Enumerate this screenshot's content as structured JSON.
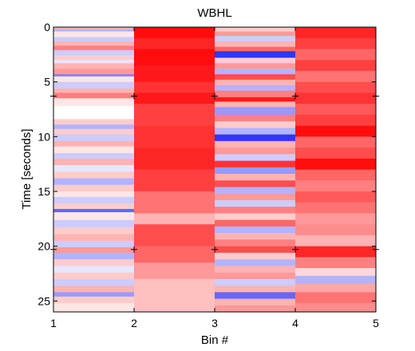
{
  "chart_data": {
    "type": "heatmap",
    "title": "WBHL",
    "xlabel": "Bin #",
    "ylabel": "Time [seconds]",
    "xlim": [
      1,
      5
    ],
    "ylim": [
      0,
      26
    ],
    "y_reversed": true,
    "x_ticks": [
      "1",
      "2",
      "3",
      "4",
      "5"
    ],
    "y_ticks": [
      "0",
      "5",
      "10",
      "15",
      "20",
      "25"
    ],
    "y_tick_values": [
      0,
      5,
      10,
      15,
      20,
      25
    ],
    "colormap": {
      "negative": "#0000ff",
      "zero": "#ffffff",
      "positive": "#ff0000"
    },
    "marker_times": [
      6.3,
      20.3
    ],
    "columns": [
      {
        "bin_range": [
          1,
          2
        ],
        "rows": [
          [
            0.0,
            0.2,
            0.3
          ],
          [
            0.2,
            0.4,
            -0.3
          ],
          [
            0.4,
            0.9,
            0.1
          ],
          [
            0.9,
            1.3,
            -0.2
          ],
          [
            1.3,
            1.7,
            0.3
          ],
          [
            1.7,
            2.1,
            0.5
          ],
          [
            2.1,
            2.6,
            -0.2
          ],
          [
            2.6,
            3.0,
            0.2
          ],
          [
            3.0,
            3.3,
            -0.1
          ],
          [
            3.3,
            3.8,
            0.3
          ],
          [
            3.8,
            4.3,
            0.4
          ],
          [
            4.3,
            4.5,
            -0.5
          ],
          [
            4.5,
            5.0,
            0.1
          ],
          [
            5.0,
            5.6,
            -0.2
          ],
          [
            5.6,
            6.0,
            0.3
          ],
          [
            6.0,
            6.5,
            0.5
          ],
          [
            6.5,
            7.2,
            0.1
          ],
          [
            7.2,
            8.4,
            0.0
          ],
          [
            8.4,
            8.9,
            0.2
          ],
          [
            8.9,
            9.3,
            -0.3
          ],
          [
            9.3,
            9.8,
            0.2
          ],
          [
            9.8,
            10.4,
            -0.2
          ],
          [
            10.4,
            10.9,
            0.3
          ],
          [
            10.9,
            11.5,
            0.1
          ],
          [
            11.5,
            12.0,
            -0.2
          ],
          [
            12.0,
            12.6,
            0.3
          ],
          [
            12.6,
            13.2,
            -0.1
          ],
          [
            13.2,
            13.8,
            0.2
          ],
          [
            13.8,
            14.4,
            -0.3
          ],
          [
            14.4,
            15.0,
            0.2
          ],
          [
            15.0,
            15.5,
            0.1
          ],
          [
            15.5,
            16.1,
            -0.2
          ],
          [
            16.1,
            16.6,
            0.2
          ],
          [
            16.6,
            16.9,
            -0.6
          ],
          [
            16.9,
            17.6,
            0.1
          ],
          [
            17.6,
            18.3,
            -0.2
          ],
          [
            18.3,
            18.9,
            0.2
          ],
          [
            18.9,
            19.5,
            0.3
          ],
          [
            19.5,
            20.1,
            -0.2
          ],
          [
            20.1,
            20.6,
            0.4
          ],
          [
            20.6,
            21.2,
            -0.3
          ],
          [
            21.2,
            21.8,
            0.2
          ],
          [
            21.8,
            22.4,
            -0.1
          ],
          [
            22.4,
            23.0,
            0.2
          ],
          [
            23.0,
            23.6,
            -0.2
          ],
          [
            23.6,
            24.2,
            0.3
          ],
          [
            24.2,
            24.6,
            -0.4
          ],
          [
            24.6,
            25.2,
            0.2
          ],
          [
            25.2,
            26.0,
            0.1
          ]
        ]
      },
      {
        "bin_range": [
          2,
          3
        ],
        "rows": [
          [
            0.0,
            1.0,
            0.95
          ],
          [
            1.0,
            2.0,
            0.85
          ],
          [
            2.0,
            3.5,
            0.95
          ],
          [
            3.5,
            5.0,
            0.9
          ],
          [
            5.0,
            6.0,
            0.8
          ],
          [
            6.0,
            7.0,
            0.9
          ],
          [
            7.0,
            9.0,
            0.75
          ],
          [
            9.0,
            11.0,
            0.8
          ],
          [
            11.0,
            13.0,
            0.85
          ],
          [
            13.0,
            15.0,
            0.75
          ],
          [
            15.0,
            17.0,
            0.55
          ],
          [
            17.0,
            18.0,
            0.3
          ],
          [
            18.0,
            20.0,
            0.7
          ],
          [
            20.0,
            21.5,
            0.6
          ],
          [
            21.5,
            23.0,
            0.4
          ],
          [
            23.0,
            26.0,
            0.25
          ]
        ]
      },
      {
        "bin_range": [
          3,
          4
        ],
        "rows": [
          [
            0.0,
            0.4,
            0.2
          ],
          [
            0.4,
            0.8,
            0.4
          ],
          [
            0.8,
            1.3,
            -0.2
          ],
          [
            1.3,
            1.8,
            0.3
          ],
          [
            1.8,
            2.2,
            0.6
          ],
          [
            2.2,
            2.8,
            -0.8
          ],
          [
            2.8,
            3.3,
            0.2
          ],
          [
            3.3,
            3.8,
            0.4
          ],
          [
            3.8,
            4.3,
            -0.3
          ],
          [
            4.3,
            4.8,
            0.7
          ],
          [
            4.8,
            5.3,
            0.3
          ],
          [
            5.3,
            5.8,
            -0.3
          ],
          [
            5.8,
            6.4,
            0.5
          ],
          [
            6.4,
            6.8,
            0.9
          ],
          [
            6.8,
            7.3,
            0.3
          ],
          [
            7.3,
            8.0,
            -0.4
          ],
          [
            8.0,
            8.6,
            0.5
          ],
          [
            8.6,
            9.2,
            0.2
          ],
          [
            9.2,
            9.8,
            -0.3
          ],
          [
            9.8,
            10.4,
            -0.8
          ],
          [
            10.4,
            11.0,
            0.3
          ],
          [
            11.0,
            11.6,
            0.4
          ],
          [
            11.6,
            12.2,
            -0.2
          ],
          [
            12.2,
            12.8,
            0.8
          ],
          [
            12.8,
            13.4,
            -0.4
          ],
          [
            13.4,
            14.0,
            0.3
          ],
          [
            14.0,
            14.6,
            0.7
          ],
          [
            14.6,
            15.2,
            -0.3
          ],
          [
            15.2,
            15.8,
            0.4
          ],
          [
            15.8,
            16.4,
            -0.2
          ],
          [
            16.4,
            17.0,
            0.5
          ],
          [
            17.0,
            17.6,
            0.2
          ],
          [
            17.6,
            18.2,
            0.6
          ],
          [
            18.2,
            18.8,
            -0.3
          ],
          [
            18.8,
            19.4,
            0.3
          ],
          [
            19.4,
            20.0,
            0.5
          ],
          [
            20.0,
            20.6,
            0.7
          ],
          [
            20.6,
            21.2,
            0.2
          ],
          [
            21.2,
            21.8,
            -0.3
          ],
          [
            21.8,
            22.4,
            0.3
          ],
          [
            22.4,
            23.0,
            0.4
          ],
          [
            23.0,
            23.6,
            -0.2
          ],
          [
            23.6,
            24.2,
            0.3
          ],
          [
            24.2,
            24.8,
            -0.6
          ],
          [
            24.8,
            25.4,
            0.3
          ],
          [
            25.4,
            26.0,
            0.4
          ]
        ]
      },
      {
        "bin_range": [
          4,
          5
        ],
        "rows": [
          [
            0.0,
            1.0,
            0.85
          ],
          [
            1.0,
            2.0,
            0.75
          ],
          [
            2.0,
            3.0,
            0.6
          ],
          [
            3.0,
            4.0,
            0.75
          ],
          [
            4.0,
            5.0,
            0.55
          ],
          [
            5.0,
            6.0,
            0.7
          ],
          [
            6.0,
            7.0,
            0.8
          ],
          [
            7.0,
            8.0,
            0.65
          ],
          [
            8.0,
            9.0,
            0.75
          ],
          [
            9.0,
            10.0,
            0.95
          ],
          [
            10.0,
            11.0,
            0.6
          ],
          [
            11.0,
            12.0,
            0.7
          ],
          [
            12.0,
            13.0,
            0.95
          ],
          [
            13.0,
            14.0,
            0.6
          ],
          [
            14.0,
            15.0,
            0.5
          ],
          [
            15.0,
            16.0,
            0.65
          ],
          [
            16.0,
            17.0,
            0.55
          ],
          [
            17.0,
            18.0,
            0.4
          ],
          [
            18.0,
            19.0,
            0.45
          ],
          [
            19.0,
            20.0,
            0.3
          ],
          [
            20.0,
            21.0,
            0.85
          ],
          [
            21.0,
            22.0,
            0.5
          ],
          [
            22.0,
            22.7,
            0.15
          ],
          [
            22.7,
            23.4,
            -0.3
          ],
          [
            23.4,
            24.2,
            0.35
          ],
          [
            24.2,
            25.2,
            0.55
          ],
          [
            25.2,
            26.0,
            0.45
          ]
        ]
      }
    ]
  }
}
